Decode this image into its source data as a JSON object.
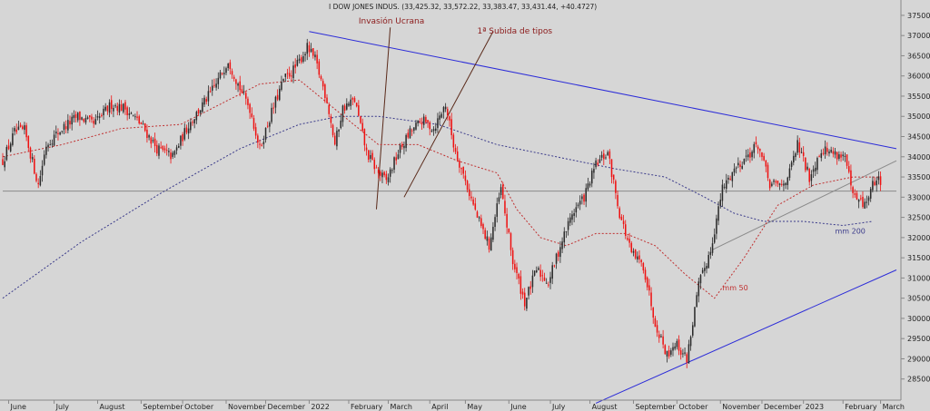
{
  "chart_data": {
    "type": "candlestick",
    "title": "I DOW JONES INDUS. (33,425.32, 33,572.22, 33,383.47, 33,431.44, +40.4727)",
    "ylim": [
      28000,
      37700
    ],
    "y_ticks": [
      28500,
      29000,
      29500,
      30000,
      30500,
      31000,
      31500,
      32000,
      32500,
      33000,
      33500,
      34000,
      34500,
      35000,
      35500,
      36000,
      36500,
      37000,
      37500
    ],
    "y_tick_labels": [
      "28500",
      "29000",
      "29500",
      "30000",
      "30500",
      "31000",
      "31500",
      "32000",
      "32500",
      "33000",
      "33500",
      "34000",
      "34500",
      "35000",
      "35500",
      "36000",
      "36500",
      "37000",
      "37500"
    ],
    "months": [
      {
        "label": "June",
        "index": 3
      },
      {
        "label": "July",
        "index": 26
      },
      {
        "label": "August",
        "index": 48
      },
      {
        "label": "September",
        "index": 70
      },
      {
        "label": "October",
        "index": 91
      },
      {
        "label": "November",
        "index": 113
      },
      {
        "label": "December",
        "index": 133
      },
      {
        "label": "2022",
        "index": 155
      },
      {
        "label": "February",
        "index": 175
      },
      {
        "label": "March",
        "index": 195
      },
      {
        "label": "April",
        "index": 216
      },
      {
        "label": "May",
        "index": 234
      },
      {
        "label": "June",
        "index": 256
      },
      {
        "label": "July",
        "index": 277
      },
      {
        "label": "August",
        "index": 297
      },
      {
        "label": "September",
        "index": 319
      },
      {
        "label": "October",
        "index": 341
      },
      {
        "label": "November",
        "index": 363
      },
      {
        "label": "December",
        "index": 384
      },
      {
        "label": "2023",
        "index": 405
      },
      {
        "label": "February",
        "index": 425
      },
      {
        "label": "March",
        "index": 444
      }
    ],
    "close_anchors": [
      [
        0,
        33900
      ],
      [
        6,
        34600
      ],
      [
        11,
        34650
      ],
      [
        18,
        33300
      ],
      [
        22,
        34300
      ],
      [
        30,
        34700
      ],
      [
        38,
        35000
      ],
      [
        46,
        34800
      ],
      [
        55,
        35300
      ],
      [
        62,
        35200
      ],
      [
        70,
        34800
      ],
      [
        78,
        34200
      ],
      [
        86,
        34000
      ],
      [
        94,
        34800
      ],
      [
        100,
        35200
      ],
      [
        108,
        35800
      ],
      [
        114,
        36400
      ],
      [
        119,
        35800
      ],
      [
        125,
        35200
      ],
      [
        130,
        34200
      ],
      [
        136,
        35100
      ],
      [
        142,
        35900
      ],
      [
        148,
        36200
      ],
      [
        154,
        36700
      ],
      [
        158,
        36400
      ],
      [
        164,
        35400
      ],
      [
        168,
        34300
      ],
      [
        172,
        35200
      ],
      [
        178,
        35400
      ],
      [
        184,
        34100
      ],
      [
        190,
        33600
      ],
      [
        194,
        33400
      ],
      [
        200,
        34100
      ],
      [
        206,
        34600
      ],
      [
        212,
        34900
      ],
      [
        218,
        34700
      ],
      [
        224,
        35300
      ],
      [
        228,
        34300
      ],
      [
        234,
        33400
      ],
      [
        240,
        32500
      ],
      [
        246,
        31800
      ],
      [
        252,
        33200
      ],
      [
        258,
        31400
      ],
      [
        264,
        30400
      ],
      [
        270,
        31200
      ],
      [
        276,
        30900
      ],
      [
        282,
        31800
      ],
      [
        288,
        32600
      ],
      [
        294,
        33000
      ],
      [
        300,
        33800
      ],
      [
        306,
        34100
      ],
      [
        312,
        32600
      ],
      [
        318,
        31600
      ],
      [
        324,
        31300
      ],
      [
        330,
        29900
      ],
      [
        336,
        29100
      ],
      [
        340,
        29400
      ],
      [
        346,
        29000
      ],
      [
        352,
        30800
      ],
      [
        358,
        31700
      ],
      [
        364,
        33200
      ],
      [
        370,
        33700
      ],
      [
        376,
        34000
      ],
      [
        382,
        34300
      ],
      [
        388,
        33300
      ],
      [
        394,
        33300
      ],
      [
        398,
        33600
      ],
      [
        402,
        34300
      ],
      [
        408,
        33500
      ],
      [
        414,
        34200
      ],
      [
        420,
        34100
      ],
      [
        426,
        34000
      ],
      [
        430,
        33000
      ],
      [
        436,
        32800
      ],
      [
        441,
        33400
      ],
      [
        444,
        33431
      ]
    ],
    "mm50_anchors": [
      [
        0,
        34000
      ],
      [
        30,
        34300
      ],
      [
        60,
        34700
      ],
      [
        90,
        34800
      ],
      [
        110,
        35300
      ],
      [
        130,
        35800
      ],
      [
        150,
        35900
      ],
      [
        170,
        35100
      ],
      [
        190,
        34300
      ],
      [
        210,
        34300
      ],
      [
        230,
        33900
      ],
      [
        250,
        33600
      ],
      [
        260,
        32700
      ],
      [
        272,
        32000
      ],
      [
        285,
        31800
      ],
      [
        300,
        32100
      ],
      [
        315,
        32100
      ],
      [
        330,
        31800
      ],
      [
        345,
        31100
      ],
      [
        360,
        30500
      ],
      [
        375,
        31500
      ],
      [
        392,
        32800
      ],
      [
        410,
        33300
      ],
      [
        430,
        33500
      ],
      [
        444,
        33500
      ]
    ],
    "mm200_anchors": [
      [
        0,
        30500
      ],
      [
        40,
        31900
      ],
      [
        80,
        33100
      ],
      [
        120,
        34200
      ],
      [
        150,
        34800
      ],
      [
        170,
        35000
      ],
      [
        190,
        35000
      ],
      [
        220,
        34800
      ],
      [
        250,
        34300
      ],
      [
        280,
        34000
      ],
      [
        310,
        33700
      ],
      [
        335,
        33500
      ],
      [
        355,
        33000
      ],
      [
        370,
        32600
      ],
      [
        385,
        32400
      ],
      [
        405,
        32400
      ],
      [
        425,
        32300
      ],
      [
        440,
        32400
      ]
    ],
    "lines": [
      {
        "name": "blue-downtrend",
        "color": "#2b2bd8",
        "x1": 155,
        "y1": 37100,
        "x2": 452,
        "y2": 34200
      },
      {
        "name": "blue-uptrend",
        "color": "#2b2bd8",
        "x1": 300,
        "y1": 27900,
        "x2": 452,
        "y2": 31200
      },
      {
        "name": "gray-uptrend",
        "color": "#8a8a8a",
        "x1": 359,
        "y1": 31700,
        "x2": 452,
        "y2": 33900
      },
      {
        "name": "gray-horizontal",
        "color": "#8a8a8a",
        "x1": 0,
        "y1": 33150,
        "x2": 452,
        "y2": 33150
      },
      {
        "name": "dark-invasion",
        "color": "#5a2a1a",
        "x1": 189,
        "y1": 32700,
        "x2": 196,
        "y2": 37200
      },
      {
        "name": "dark-rate-hike",
        "color": "#5a2a1a",
        "x1": 203,
        "y1": 33000,
        "x2": 248,
        "y2": 37100
      }
    ],
    "annotations": [
      {
        "text": "Invasión Ucrana",
        "index": 180,
        "value": 37300
      },
      {
        "text": "1ª Subida de tipos",
        "index": 240,
        "value": 37050
      },
      {
        "text": "mm 200",
        "index": 421,
        "value": 32100,
        "color": "#3a3a8a"
      },
      {
        "text": "mm 50",
        "index": 364,
        "value": 30700,
        "color": "#c03030"
      }
    ],
    "colors": {
      "up": "#2a2a2a",
      "down": "#ee1111",
      "mm50": "#c03030",
      "mm200": "#3a3a8a",
      "background": "#d6d6d6",
      "axis": "#888888"
    }
  }
}
